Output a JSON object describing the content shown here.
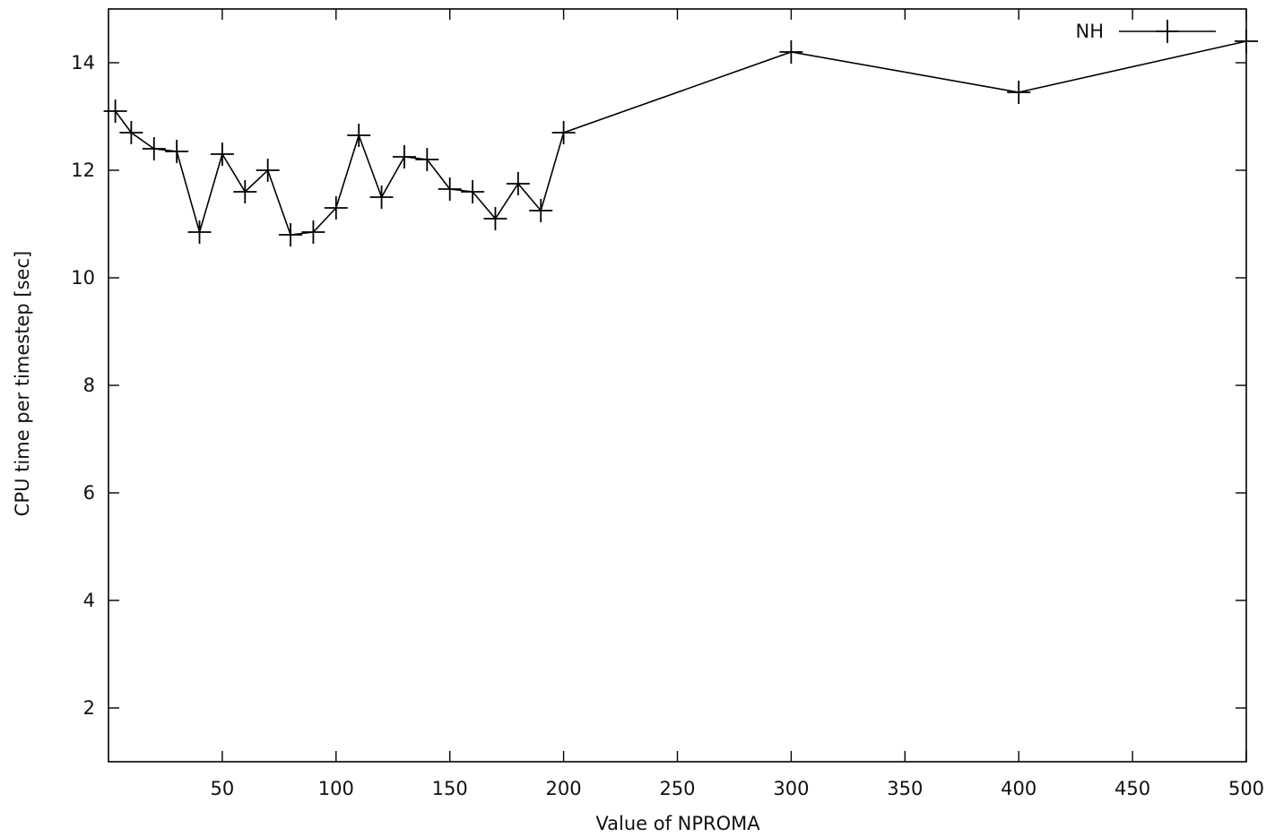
{
  "chart_data": {
    "type": "line",
    "title": "",
    "xlabel": "Value of NPROMA",
    "ylabel": "CPU time per timestep [sec]",
    "xlim": [
      0,
      500
    ],
    "ylim": [
      1,
      15
    ],
    "xticks": [
      50,
      100,
      150,
      200,
      250,
      300,
      350,
      400,
      450,
      500
    ],
    "xtick_labels": [
      "50",
      "100",
      "150",
      "200",
      "250",
      "300",
      "350",
      "400",
      "450",
      "500"
    ],
    "yticks": [
      2,
      4,
      6,
      8,
      10,
      12,
      14
    ],
    "ytick_labels": [
      "2",
      "4",
      "6",
      "8",
      "10",
      "12",
      "14"
    ],
    "grid": false,
    "legend_position": "top-right",
    "line_color": "#000000",
    "marker": "plus",
    "series": [
      {
        "name": "NH",
        "x": [
          3,
          10,
          20,
          30,
          40,
          50,
          60,
          70,
          80,
          90,
          100,
          110,
          120,
          130,
          140,
          150,
          160,
          170,
          180,
          190,
          200,
          300,
          400,
          500
        ],
        "y": [
          13.1,
          12.7,
          12.4,
          12.35,
          10.85,
          12.3,
          11.6,
          12.0,
          10.8,
          10.85,
          11.3,
          12.65,
          11.5,
          12.25,
          12.2,
          11.65,
          11.6,
          11.1,
          11.75,
          11.25,
          12.7,
          14.2,
          13.45,
          14.4
        ]
      }
    ]
  }
}
